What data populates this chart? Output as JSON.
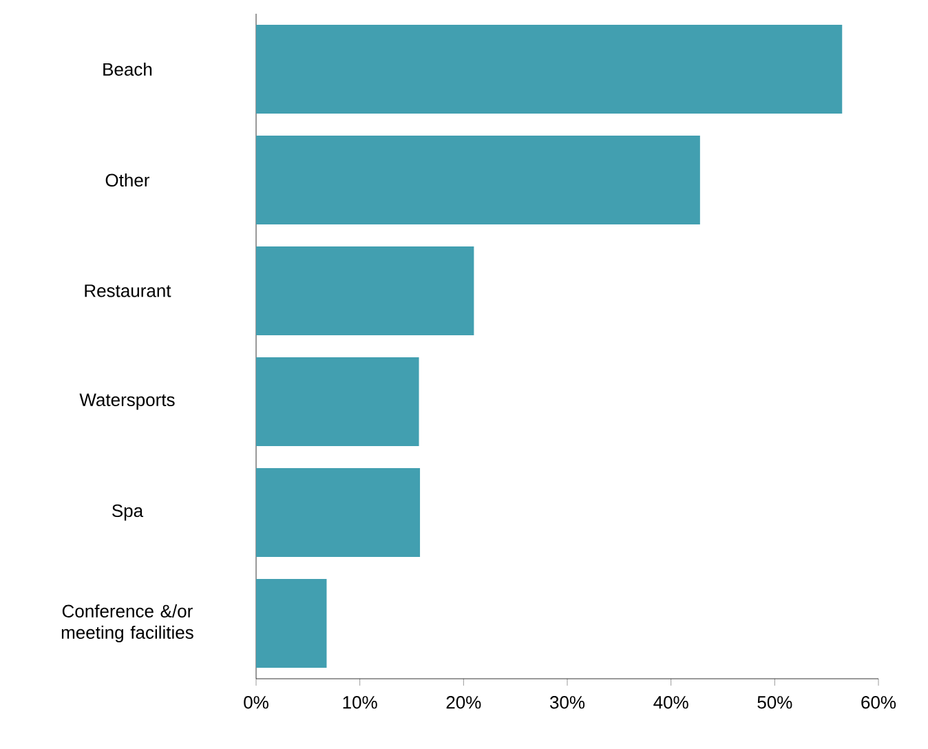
{
  "chart_data": {
    "type": "bar",
    "orientation": "horizontal",
    "categories": [
      "Beach",
      "Other",
      "Restaurant",
      "Watersports",
      "Spa",
      "Conference &/or meeting facilities"
    ],
    "values": [
      56.5,
      42.8,
      21.0,
      15.7,
      15.8,
      6.8
    ],
    "color": "#429fb0",
    "xlim": [
      0,
      60
    ],
    "xticks": [
      {
        "value": 0,
        "label": "0%"
      },
      {
        "value": 10,
        "label": "10%"
      },
      {
        "value": 20,
        "label": "20%"
      },
      {
        "value": 30,
        "label": "30%"
      },
      {
        "value": 40,
        "label": "40%"
      },
      {
        "value": 50,
        "label": "50%"
      },
      {
        "value": 60,
        "label": "60%"
      }
    ]
  }
}
